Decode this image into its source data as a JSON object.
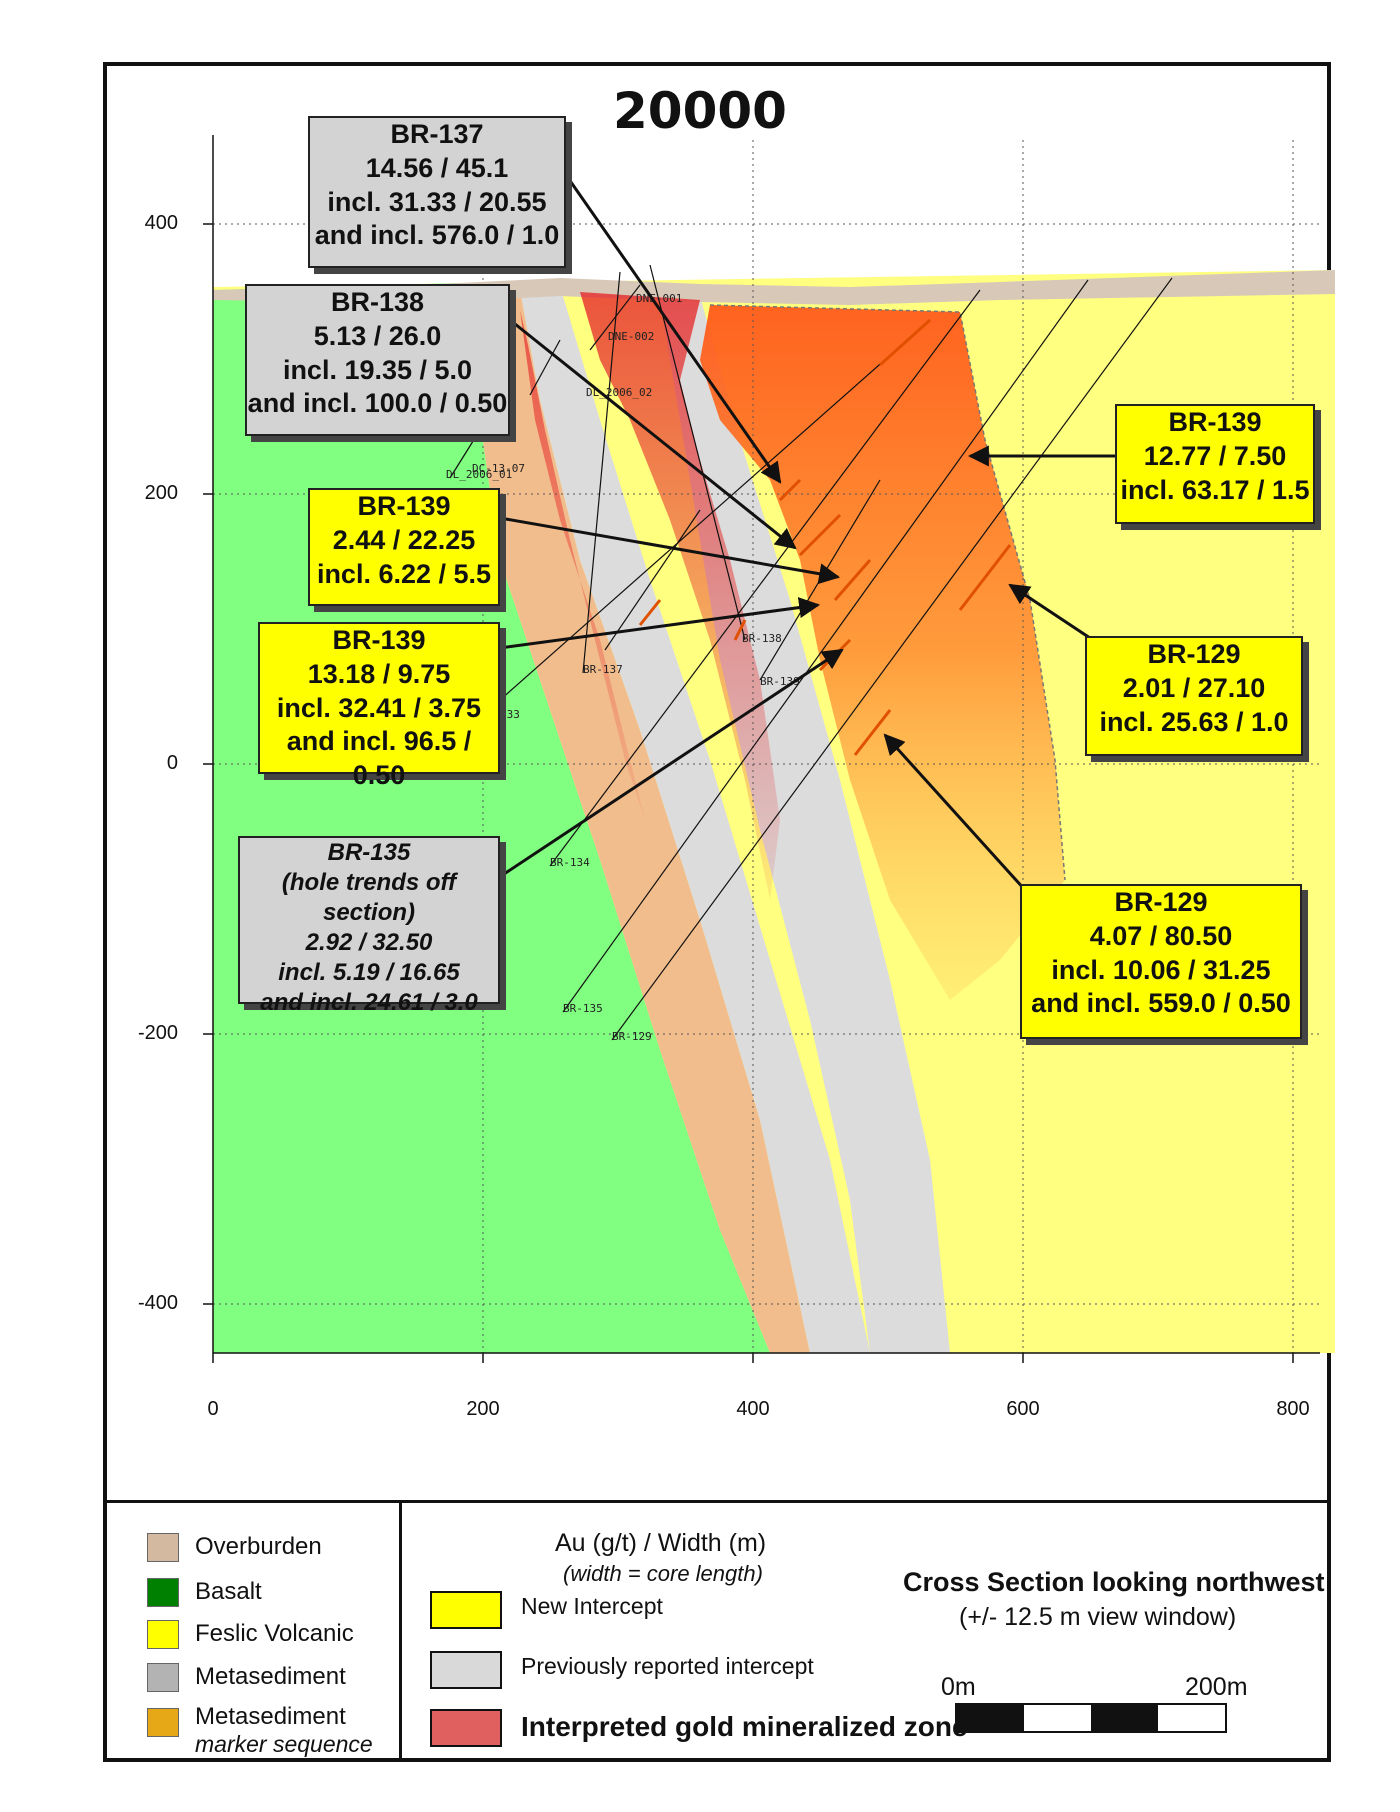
{
  "section": {
    "title": "20000"
  },
  "axes": {
    "y_ticks": [
      "400",
      "200",
      "0",
      "-200",
      "-400"
    ],
    "x_ticks": [
      "0",
      "200",
      "400",
      "600",
      "800"
    ]
  },
  "callouts": [
    {
      "hole": "BR-137",
      "style": "grey",
      "lines": [
        "BR-137",
        "14.56 / 45.1",
        "incl. 31.33 / 20.55",
        "and incl. 576.0 / 1.0"
      ]
    },
    {
      "hole": "BR-138",
      "style": "grey",
      "lines": [
        "BR-138",
        "5.13 / 26.0",
        "incl. 19.35 / 5.0",
        "and incl. 100.0 / 0.50"
      ]
    },
    {
      "hole": "BR-139",
      "style": "yellow",
      "lines": [
        "BR-139",
        "2.44 / 22.25",
        "incl. 6.22 / 5.5"
      ]
    },
    {
      "hole": "BR-139",
      "style": "yellow",
      "lines": [
        "BR-139",
        "13.18 / 9.75",
        "incl. 32.41 / 3.75",
        "and incl. 96.5 / 0.50"
      ]
    },
    {
      "hole": "BR-135",
      "style": "grey",
      "lines": [
        "BR-135",
        "(hole trends off section)",
        "2.92 / 32.50",
        "incl. 5.19 / 16.65",
        "and incl. 24.61 / 3.0"
      ]
    },
    {
      "hole": "BR-139",
      "style": "yellow",
      "lines": [
        "BR-139",
        "12.77 / 7.50",
        "incl. 63.17 / 1.5"
      ]
    },
    {
      "hole": "BR-129",
      "style": "yellow",
      "lines": [
        "BR-129",
        "2.01 / 27.10",
        "incl. 25.63 / 1.0"
      ]
    },
    {
      "hole": "BR-129",
      "style": "yellow",
      "lines": [
        "BR-129",
        "4.07 / 80.50",
        "incl. 10.06 / 31.25",
        "and incl. 559.0 / 0.50"
      ]
    }
  ],
  "hole_labels": [
    "DNE-001",
    "DNE-002",
    "DL_2006_02",
    "DL_2006_01",
    "DC-13-07",
    "BR-138",
    "BR-137",
    "BR-139",
    "BR-134",
    "BR-135",
    "BR-129",
    "133"
  ],
  "legend": {
    "units": [
      {
        "label": "Overburden",
        "color": "#d2b9a0"
      },
      {
        "label": "Basalt",
        "color": "#008000"
      },
      {
        "label": "Feslic Volcanic",
        "color": "#ffff00"
      },
      {
        "label": "Metasediment",
        "color": "#b3b3b3"
      },
      {
        "label": "Metasediment",
        "sub": "marker sequence",
        "color": "#e6a817"
      }
    ],
    "key_title": "Au (g/t) / Width (m)",
    "key_subtitle": "(width = core length)",
    "keys": [
      {
        "label": "New Intercept",
        "color": "#ffff00"
      },
      {
        "label": "Previously reported  intercept",
        "color": "#d9d9d9"
      },
      {
        "label": "Interpreted gold mineralized zone",
        "color": "#e06060"
      }
    ],
    "view_title": "Cross Section looking northwest",
    "view_subtitle": "(+/- 12.5 m view window)",
    "scale_start": "0m",
    "scale_end": "200m"
  },
  "colors": {
    "basalt": "#80ff80",
    "felsic": "#ffff80",
    "metased": "#dcdcdc",
    "marker": "#f2bd8c",
    "overburden": "#d8c8b8",
    "zone_red": "#e63030",
    "zone_orange": "#ff6020"
  }
}
